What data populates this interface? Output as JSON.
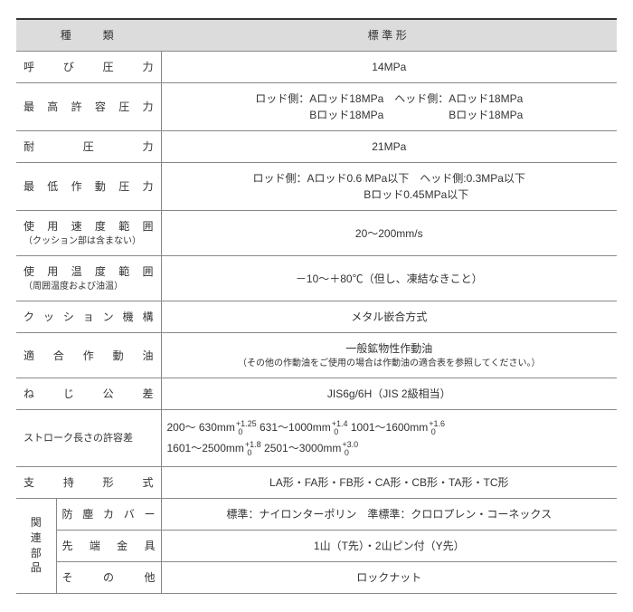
{
  "header": {
    "col1": "種　　類",
    "col2": "標準形"
  },
  "rows": [
    {
      "label": "呼 び 圧 力",
      "value": "14MPa"
    },
    {
      "label": "最 高 許 容 圧 力",
      "value": "ロッド側：Aロッド18MPa　ヘッド側：Aロッド18MPa\n　　　　　Bロッド18MPa　　　　　　Bロッド18MPa"
    },
    {
      "label": "耐　　圧　　力",
      "value": "21MPa"
    },
    {
      "label": "最 低 作 動 圧 力",
      "value": "ロッド側：Aロッド0.6  MPa以下　ヘッド側:0.3MPa以下\n　　　　　Bロッド0.45MPa以下"
    },
    {
      "label": "使 用 速 度 範 囲",
      "note": "（クッション部は含まない）",
      "value": "20～200mm/s"
    },
    {
      "label": "使 用 温 度 範 囲",
      "note": "（周囲温度および油温）",
      "value": "－10～＋80℃（但し、凍結なきこと）"
    },
    {
      "label": "ク ッ シ ョ ン 機 構",
      "value": "メタル嵌合方式"
    },
    {
      "label": "適 合 作 動 油",
      "value": "一般鉱物性作動油",
      "value_note": "（その他の作動油をご使用の場合は作動油の適合表を参照してください。）"
    },
    {
      "label": "ね　じ　公　差",
      "value": "JIS6g/6H（JIS  2級相当）"
    }
  ],
  "stroke": {
    "label": "ストローク長さの許容差",
    "segments": [
      {
        "range": "200～  630mm",
        "upper": "+1.25",
        "lower": "0"
      },
      {
        "range": "631～1000mm",
        "upper": "+1.4",
        "lower": "0"
      },
      {
        "range": "1001～1600mm",
        "upper": "+1.6",
        "lower": "0"
      },
      {
        "range": "1601～2500mm",
        "upper": "+1.8",
        "lower": "0"
      },
      {
        "range": "2501～3000mm",
        "upper": "+3.0",
        "lower": "0"
      }
    ]
  },
  "support": {
    "label": "支　持　形　式",
    "value": "LA形・FA形・FB形・CA形・CB形・TA形・TC形"
  },
  "related": {
    "group_label": "関 連 部 品",
    "items": [
      {
        "sub": "防塵カバー",
        "value": "標準：ナイロンターポリン　準標準：クロロプレン・コーネックス"
      },
      {
        "sub": "先 端 金 具",
        "value": "1山（T先）・2山ピン付（Y先）"
      },
      {
        "sub": "そ　の　他",
        "value": "ロックナット"
      }
    ]
  },
  "colors": {
    "header_bg": "#dcdcdc",
    "border": "#888888",
    "top_rule": "#333333",
    "text": "#333333"
  }
}
